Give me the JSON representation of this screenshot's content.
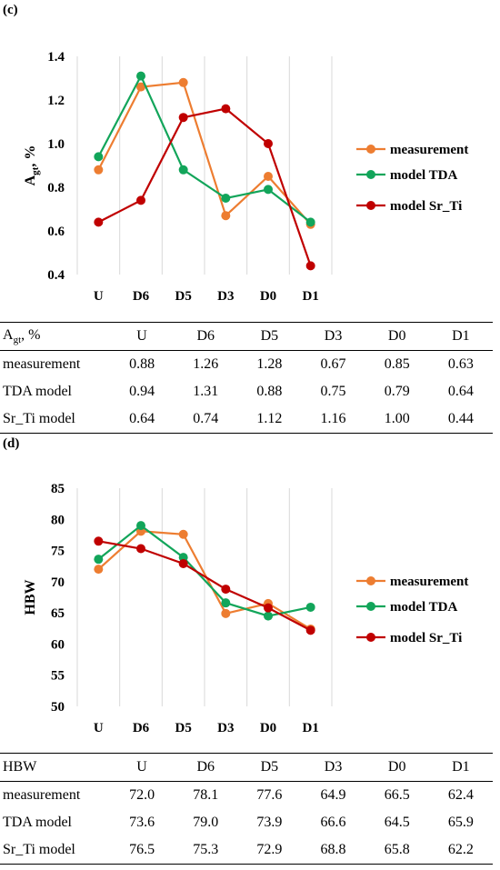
{
  "panels": [
    {
      "label": "(c)",
      "chart_data": {
        "type": "line",
        "categories": [
          "U",
          "D6",
          "D5",
          "D3",
          "D0",
          "D1"
        ],
        "ylabel": "Agt, %",
        "ylim": [
          0.4,
          1.4
        ],
        "yticks": [
          "0.4",
          "0.6",
          "0.8",
          "1.0",
          "1.2",
          "1.4"
        ],
        "ytick_values": [
          0.4,
          0.6,
          0.8,
          1.0,
          1.2,
          1.4
        ],
        "grid": "vertical",
        "legend": "right",
        "series": [
          {
            "name": "measurement",
            "color": "#ed7d31",
            "values": [
              0.88,
              1.26,
              1.28,
              0.67,
              0.85,
              0.63
            ]
          },
          {
            "name": "model TDA",
            "color": "#12a55a",
            "values": [
              0.94,
              1.31,
              0.88,
              0.75,
              0.79,
              0.64
            ]
          },
          {
            "name": "model Sr_Ti",
            "color": "#c00000",
            "values": [
              0.64,
              0.74,
              1.12,
              1.16,
              1.0,
              0.44
            ]
          }
        ]
      },
      "table": {
        "header": [
          "Agt, %",
          "U",
          "D6",
          "D5",
          "D3",
          "D0",
          "D1"
        ],
        "rows": [
          [
            "measurement",
            "0.88",
            "1.26",
            "1.28",
            "0.67",
            "0.85",
            "0.63"
          ],
          [
            "TDA model",
            "0.94",
            "1.31",
            "0.88",
            "0.75",
            "0.79",
            "0.64"
          ],
          [
            "Sr_Ti model",
            "0.64",
            "0.74",
            "1.12",
            "1.16",
            "1.00",
            "0.44"
          ]
        ]
      }
    },
    {
      "label": "(d)",
      "chart_data": {
        "type": "line",
        "categories": [
          "U",
          "D6",
          "D5",
          "D3",
          "D0",
          "D1"
        ],
        "ylabel": "HBW",
        "ylim": [
          50,
          85
        ],
        "yticks": [
          "50",
          "55",
          "60",
          "65",
          "70",
          "75",
          "80",
          "85"
        ],
        "ytick_values": [
          50,
          55,
          60,
          65,
          70,
          75,
          80,
          85
        ],
        "grid": "vertical",
        "legend": "right",
        "series": [
          {
            "name": "measurement",
            "color": "#ed7d31",
            "values": [
              72.0,
              78.1,
              77.6,
              64.9,
              66.5,
              62.4
            ]
          },
          {
            "name": "model TDA",
            "color": "#12a55a",
            "values": [
              73.6,
              79.0,
              73.9,
              66.6,
              64.5,
              65.9
            ]
          },
          {
            "name": "model Sr_Ti",
            "color": "#c00000",
            "values": [
              76.5,
              75.3,
              72.9,
              68.8,
              65.8,
              62.2
            ]
          }
        ]
      },
      "table": {
        "header": [
          "HBW",
          "U",
          "D6",
          "D5",
          "D3",
          "D0",
          "D1"
        ],
        "rows": [
          [
            "measurement",
            "72.0",
            "78.1",
            "77.6",
            "64.9",
            "66.5",
            "62.4"
          ],
          [
            "TDA model",
            "73.6",
            "79.0",
            "73.9",
            "66.6",
            "64.5",
            "65.9"
          ],
          [
            "Sr_Ti model",
            "76.5",
            "75.3",
            "72.9",
            "68.8",
            "65.8",
            "62.2"
          ]
        ]
      }
    }
  ]
}
